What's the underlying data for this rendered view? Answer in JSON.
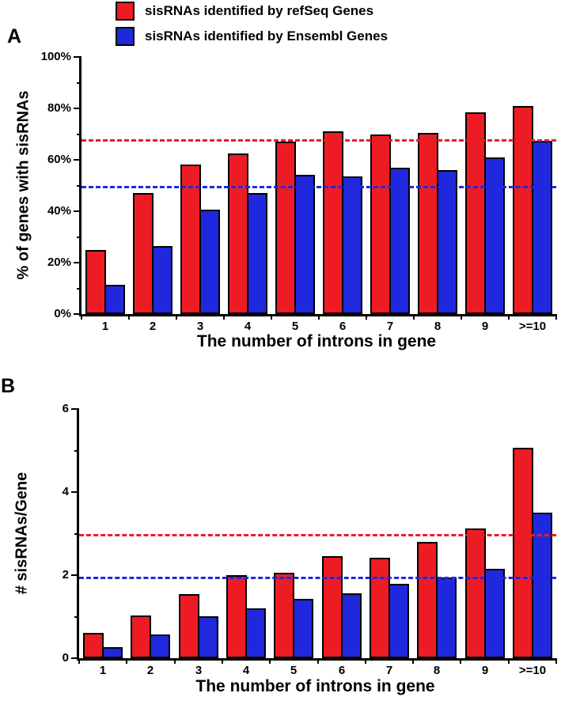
{
  "legend": {
    "items": [
      {
        "id": "refseq",
        "label": "sisRNAs identified by refSeq Genes",
        "color": "#ed1c24"
      },
      {
        "id": "ensembl",
        "label": "sisRNAs identified by Ensembl Genes",
        "color": "#2028dd"
      }
    ]
  },
  "panels": [
    {
      "label": "A"
    },
    {
      "label": "B"
    }
  ],
  "chart_data": [
    {
      "type": "bar",
      "panel": "A",
      "categories": [
        "1",
        "2",
        "3",
        "4",
        "5",
        "6",
        "7",
        "8",
        "9",
        ">=10"
      ],
      "series": [
        {
          "name": "sisRNAs identified by refSeq Genes",
          "color": "#ed1c24",
          "values": [
            25,
            47,
            58,
            62.5,
            67,
            71,
            70,
            70.5,
            78.5,
            81
          ]
        },
        {
          "name": "sisRNAs identified by Ensembl Genes",
          "color": "#2028dd",
          "values": [
            11.5,
            26.5,
            40.5,
            47,
            54,
            53.5,
            57,
            56,
            61,
            67.5
          ]
        }
      ],
      "xlabel": "The number of introns in gene",
      "ylabel": "% of genes with sisRNAs",
      "ylim": [
        0,
        100
      ],
      "yticks": [
        0,
        20,
        40,
        60,
        80,
        100
      ],
      "ytick_format": "percent",
      "grid": false,
      "legend_position": "top",
      "reference_lines": [
        {
          "value": 67.5,
          "color": "#ed1c24",
          "style": "dashed"
        },
        {
          "value": 49.5,
          "color": "#2028dd",
          "style": "dashed"
        }
      ]
    },
    {
      "type": "bar",
      "panel": "B",
      "categories": [
        "1",
        "2",
        "3",
        "4",
        "5",
        "6",
        "7",
        "8",
        "9",
        ">=10"
      ],
      "series": [
        {
          "name": "sisRNAs identified by refSeq Genes",
          "color": "#ed1c24",
          "values": [
            0.6,
            1.03,
            1.54,
            2.0,
            2.06,
            2.46,
            2.42,
            2.8,
            3.12,
            5.07
          ]
        },
        {
          "name": "sisRNAs identified by Ensembl Genes",
          "color": "#2028dd",
          "values": [
            0.27,
            0.57,
            1.0,
            1.2,
            1.43,
            1.56,
            1.79,
            1.94,
            2.15,
            3.5
          ]
        }
      ],
      "xlabel": "The number of introns in gene",
      "ylabel": "# sisRNAs/Gene",
      "ylim": [
        0,
        6
      ],
      "yticks": [
        0,
        2,
        4,
        6
      ],
      "ytick_format": "number",
      "grid": false,
      "legend_position": "top",
      "reference_lines": [
        {
          "value": 2.97,
          "color": "#ed1c24",
          "style": "dashed"
        },
        {
          "value": 1.94,
          "color": "#2028dd",
          "style": "dashed"
        }
      ]
    }
  ]
}
